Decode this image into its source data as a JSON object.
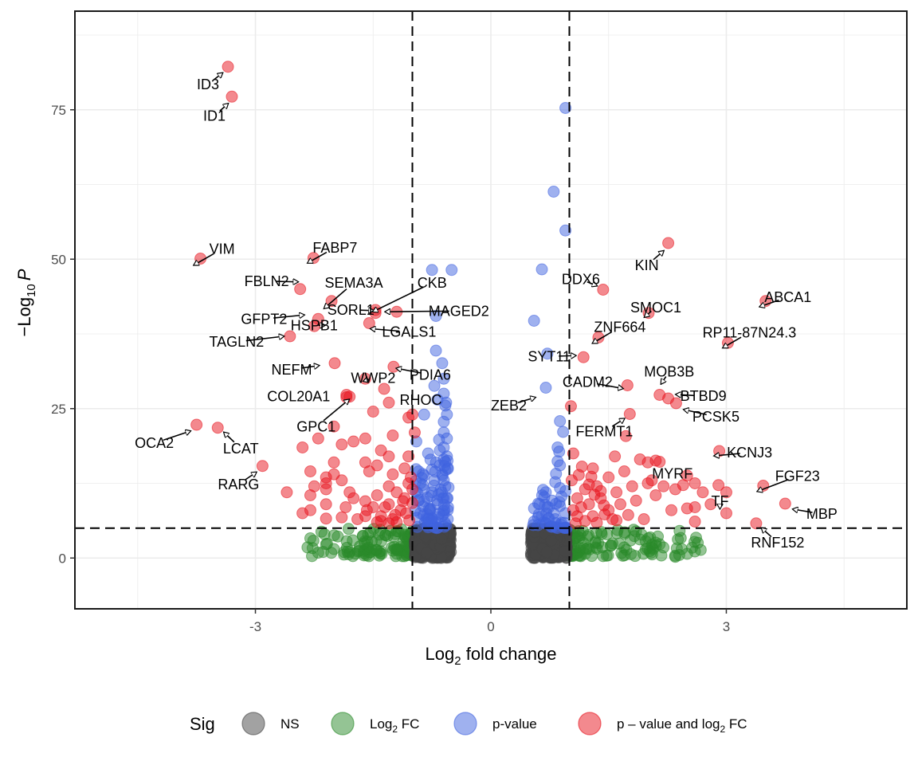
{
  "chart_data": {
    "type": "scatter",
    "subtype": "volcano",
    "title": "",
    "xlabel": {
      "base": "Log",
      "sub": "2",
      "rest": " fold change"
    },
    "ylabel": {
      "prefix": "−Log",
      "sub": "10",
      "var": "P"
    },
    "xlim": [
      -5.3,
      5.3
    ],
    "ylim": [
      -8.5,
      91.5
    ],
    "x_ticks": [
      -3,
      0,
      3
    ],
    "x_tick_labels": [
      "-3",
      "0",
      "3"
    ],
    "y_ticks": [
      0,
      25,
      50,
      75
    ],
    "y_tick_labels": [
      "0",
      "25",
      "50",
      "75"
    ],
    "grid": true,
    "fc_cutoff": 1,
    "p_cutoff_neglog10": 5,
    "legend": {
      "position": "bottom",
      "title": "Sig",
      "items": [
        {
          "key": "NS",
          "label": "NS",
          "color": "#454545"
        },
        {
          "key": "FC",
          "label": {
            "base": "Log",
            "sub": "2",
            "rest": " FC"
          },
          "color": "#2a8a2a"
        },
        {
          "key": "P",
          "label": "p-value",
          "color": "#3f63e0"
        },
        {
          "key": "PFC",
          "label": {
            "base": "p – value and log",
            "sub": "2",
            "rest": " FC"
          },
          "color": "#e8141e"
        }
      ]
    },
    "colors": {
      "NS": "#454545",
      "FC": "#2a8a2a",
      "P": "#3f63e0",
      "PFC": "#e8141e"
    },
    "labeled_genes": [
      {
        "gene": "ID3",
        "x": -3.35,
        "y": 82.2
      },
      {
        "gene": "ID1",
        "x": -3.3,
        "y": 77.2
      },
      {
        "gene": "VIM",
        "x": -3.7,
        "y": 50.1
      },
      {
        "gene": "FABP7",
        "x": -2.26,
        "y": 50.2
      },
      {
        "gene": "FBLN2",
        "x": -2.43,
        "y": 45.0
      },
      {
        "gene": "SEMA3A",
        "x": -2.03,
        "y": 43.0
      },
      {
        "gene": "GFPT2",
        "x": -2.25,
        "y": 38.8
      },
      {
        "gene": "SORL1",
        "x": -1.47,
        "y": 41.0
      },
      {
        "gene": "CKB",
        "x": -1.47,
        "y": 41.5
      },
      {
        "gene": "MAGED2",
        "x": -1.2,
        "y": 41.2
      },
      {
        "gene": "TAGLN2",
        "x": -2.56,
        "y": 37.1
      },
      {
        "gene": "HSPB1",
        "x": -2.2,
        "y": 40.0
      },
      {
        "gene": "LGALS1",
        "x": -1.55,
        "y": 39.3
      },
      {
        "gene": "NEFM",
        "x": -1.99,
        "y": 32.6
      },
      {
        "gene": "WWP2",
        "x": -1.6,
        "y": 30.0
      },
      {
        "gene": "PDIA6",
        "x": -1.24,
        "y": 32.0
      },
      {
        "gene": "COL20A1",
        "x": -1.84,
        "y": 27.3
      },
      {
        "gene": "RHOC",
        "x": -1.36,
        "y": 28.3
      },
      {
        "gene": "GPC1",
        "x": -1.84,
        "y": 26.9
      },
      {
        "gene": "OCA2",
        "x": -3.75,
        "y": 22.3
      },
      {
        "gene": "LCAT",
        "x": -3.48,
        "y": 21.8
      },
      {
        "gene": "RARG",
        "x": -2.91,
        "y": 15.4
      },
      {
        "gene": "KIN",
        "x": 2.26,
        "y": 52.7
      },
      {
        "gene": "DDX6",
        "x": 1.43,
        "y": 44.9
      },
      {
        "gene": "ABCA1",
        "x": 3.5,
        "y": 43.0
      },
      {
        "gene": "SMOC1",
        "x": 2.01,
        "y": 41.0
      },
      {
        "gene": "ZNF664",
        "x": 1.37,
        "y": 36.9
      },
      {
        "gene": "RP11-87N24.3",
        "x": 3.02,
        "y": 36.0
      },
      {
        "gene": "SYT11",
        "x": 1.18,
        "y": 33.6
      },
      {
        "gene": "MOB3B",
        "x": 2.15,
        "y": 27.3
      },
      {
        "gene": "CADM2",
        "x": 1.74,
        "y": 28.9
      },
      {
        "gene": "BTBD9",
        "x": 2.26,
        "y": 26.7
      },
      {
        "gene": "ZEB2",
        "x": 1.02,
        "y": 25.4
      },
      {
        "gene": "PCSK5",
        "x": 2.36,
        "y": 25.9
      },
      {
        "gene": "FERMT1",
        "x": 1.77,
        "y": 24.1
      },
      {
        "gene": "MYRF",
        "x": 2.15,
        "y": 16.1
      },
      {
        "gene": "KCNJ3",
        "x": 2.91,
        "y": 17.9
      },
      {
        "gene": "FGF23",
        "x": 3.47,
        "y": 12.1
      },
      {
        "gene": "TF",
        "x": 3.0,
        "y": 7.5
      },
      {
        "gene": "MBP",
        "x": 3.75,
        "y": 9.1
      },
      {
        "gene": "RNF152",
        "x": 3.38,
        "y": 5.8
      }
    ],
    "other_points": {
      "PFC": [
        [
          -1.0,
          24
        ],
        [
          -1.05,
          23.5
        ],
        [
          -0.97,
          21
        ],
        [
          -1.3,
          26
        ],
        [
          -1.5,
          24.5
        ],
        [
          -1.8,
          27
        ],
        [
          -2.0,
          22
        ],
        [
          -2.2,
          20
        ],
        [
          -2.4,
          18.5
        ],
        [
          -1.6,
          20
        ],
        [
          -1.4,
          18
        ],
        [
          -1.75,
          19.5
        ],
        [
          -1.9,
          19
        ],
        [
          -1.25,
          20.5
        ],
        [
          -1.3,
          17
        ],
        [
          -1.6,
          16
        ],
        [
          -1.45,
          15.5
        ],
        [
          -1.25,
          14
        ],
        [
          -1.1,
          15
        ],
        [
          -1.05,
          17
        ],
        [
          -2.0,
          16
        ],
        [
          -2.1,
          13.5
        ],
        [
          -2.3,
          14.5
        ],
        [
          -2.25,
          12
        ],
        [
          -2.1,
          12.5
        ],
        [
          -1.8,
          11
        ],
        [
          -1.9,
          13
        ],
        [
          -2.3,
          10.5
        ],
        [
          -2.1,
          11.5
        ],
        [
          -2.0,
          14
        ],
        [
          -1.55,
          14.5
        ],
        [
          -1.6,
          9.5
        ],
        [
          -1.45,
          10.5
        ],
        [
          -1.6,
          7
        ],
        [
          -1.3,
          12
        ],
        [
          -1.2,
          11
        ],
        [
          -1.3,
          9
        ],
        [
          -1.15,
          8
        ],
        [
          -1.25,
          6.5
        ],
        [
          -1.1,
          10
        ],
        [
          -1.05,
          12.5
        ],
        [
          -1.4,
          7
        ],
        [
          -1.5,
          8.5
        ],
        [
          -1.2,
          6
        ],
        [
          -1.08,
          7.5
        ],
        [
          -1.3,
          5.8
        ],
        [
          -1.4,
          6.2
        ],
        [
          -1.7,
          6.5
        ],
        [
          -1.9,
          6.8
        ],
        [
          -2.3,
          8
        ],
        [
          -2.1,
          9
        ],
        [
          -2.6,
          11
        ],
        [
          -2.4,
          7.5
        ],
        [
          -2.1,
          6.6
        ],
        [
          -1.85,
          8.5
        ],
        [
          -1.75,
          10
        ],
        [
          -1.0,
          9.2
        ],
        [
          -1.0,
          11.5
        ],
        [
          -1.02,
          13.5
        ],
        [
          -1.35,
          8.5
        ],
        [
          -1.12,
          9.5
        ],
        [
          -1.22,
          7.2
        ],
        [
          -1.45,
          6.0
        ],
        [
          -1.58,
          8.0
        ],
        [
          -1.04,
          6.3
        ],
        [
          1.05,
          17.5
        ],
        [
          1.03,
          13
        ],
        [
          1.1,
          10
        ],
        [
          1.15,
          8.5
        ],
        [
          1.2,
          11.5
        ],
        [
          1.25,
          9
        ],
        [
          1.3,
          15
        ],
        [
          1.35,
          12
        ],
        [
          1.3,
          7
        ],
        [
          1.4,
          10
        ],
        [
          1.5,
          13.5
        ],
        [
          1.6,
          11
        ],
        [
          1.65,
          9
        ],
        [
          1.7,
          14.5
        ],
        [
          1.8,
          12
        ],
        [
          1.9,
          16.5
        ],
        [
          2.0,
          16
        ],
        [
          2.1,
          16.3
        ],
        [
          2.05,
          13
        ],
        [
          2.2,
          12
        ],
        [
          2.35,
          11.5
        ],
        [
          2.5,
          13.8
        ],
        [
          2.6,
          12.5
        ],
        [
          2.7,
          11
        ],
        [
          2.6,
          8.5
        ],
        [
          2.8,
          9
        ],
        [
          3.0,
          11
        ],
        [
          2.9,
          12.2
        ],
        [
          2.45,
          12.2
        ],
        [
          2.3,
          8
        ],
        [
          2.1,
          10.5
        ],
        [
          1.75,
          7.2
        ],
        [
          1.55,
          6.5
        ],
        [
          1.5,
          8
        ],
        [
          1.45,
          7.3
        ],
        [
          1.2,
          6.2
        ],
        [
          1.1,
          7
        ],
        [
          1.05,
          8
        ],
        [
          1.08,
          5.8
        ],
        [
          1.35,
          5.9
        ],
        [
          1.6,
          6.3
        ],
        [
          1.95,
          6.5
        ],
        [
          2.5,
          8.3
        ],
        [
          2.6,
          6.1
        ],
        [
          1.4,
          11.2
        ],
        [
          1.28,
          13.6
        ],
        [
          1.72,
          20.4
        ],
        [
          1.58,
          17.0
        ],
        [
          2.0,
          12.5
        ],
        [
          1.85,
          9.6
        ],
        [
          1.25,
          12.3
        ],
        [
          1.16,
          15.3
        ],
        [
          1.12,
          13.9
        ],
        [
          1.32,
          10.6
        ],
        [
          1.44,
          8.8
        ]
      ],
      "P": [
        [
          -0.5,
          48.2
        ],
        [
          -0.75,
          48.2
        ],
        [
          -0.7,
          40.5
        ],
        [
          -0.7,
          34.7
        ],
        [
          -0.62,
          32.6
        ],
        [
          -0.72,
          28.8
        ],
        [
          -0.68,
          26.5
        ],
        [
          -0.85,
          24
        ],
        [
          -0.95,
          19.5
        ],
        [
          -0.6,
          21
        ],
        [
          -0.65,
          18
        ],
        [
          -0.7,
          16
        ],
        [
          -0.62,
          14
        ],
        [
          -0.72,
          13
        ],
        [
          -0.58,
          12
        ],
        [
          -0.9,
          12.5
        ],
        [
          -0.75,
          11
        ],
        [
          -0.6,
          10
        ],
        [
          -0.68,
          9
        ],
        [
          -0.85,
          9.5
        ],
        [
          -0.55,
          8
        ],
        [
          -0.78,
          8
        ],
        [
          -0.62,
          7
        ],
        [
          -0.9,
          7.5
        ],
        [
          -0.55,
          6.5
        ],
        [
          -0.7,
          6
        ],
        [
          -0.8,
          6.5
        ],
        [
          -0.57,
          5.5
        ],
        [
          -0.65,
          15.5
        ],
        [
          -0.6,
          22.8
        ],
        [
          -0.58,
          25.5
        ],
        [
          -0.66,
          19.8
        ],
        [
          -0.8,
          17.5
        ],
        [
          -0.92,
          14.5
        ],
        [
          -0.64,
          11.5
        ],
        [
          -0.56,
          17
        ],
        [
          -0.56,
          20
        ],
        [
          -0.56,
          24
        ],
        [
          -0.57,
          26
        ],
        [
          -0.6,
          30
        ],
        [
          -0.6,
          13
        ],
        [
          -0.6,
          16.5
        ],
        [
          -0.6,
          18.5
        ],
        [
          -0.6,
          27.5
        ],
        [
          -0.85,
          13.8
        ],
        [
          -0.75,
          14.8
        ],
        [
          0.95,
          75.3
        ],
        [
          0.8,
          61.3
        ],
        [
          0.95,
          54.8
        ],
        [
          0.65,
          48.3
        ],
        [
          0.55,
          39.7
        ],
        [
          0.72,
          34.2
        ],
        [
          0.7,
          28.5
        ],
        [
          0.88,
          22.9
        ],
        [
          0.92,
          21.1
        ],
        [
          0.87,
          17.8
        ],
        [
          0.85,
          16.2
        ],
        [
          0.88,
          15.5
        ],
        [
          0.82,
          12.7
        ],
        [
          0.88,
          11.7
        ],
        [
          0.95,
          11.2
        ],
        [
          0.7,
          11
        ],
        [
          0.68,
          10.2
        ],
        [
          0.9,
          10.3
        ],
        [
          0.78,
          9.6
        ],
        [
          0.62,
          9
        ],
        [
          0.88,
          8.7
        ],
        [
          0.72,
          8.5
        ],
        [
          0.55,
          8.3
        ],
        [
          0.8,
          7.5
        ],
        [
          0.65,
          7
        ],
        [
          0.95,
          7.5
        ],
        [
          0.82,
          6.5
        ],
        [
          0.55,
          6.1
        ],
        [
          0.7,
          5.8
        ],
        [
          0.9,
          5.9
        ],
        [
          0.6,
          5.5
        ],
        [
          0.85,
          18.5
        ],
        [
          0.83,
          14.1
        ],
        [
          0.6,
          6.8
        ]
      ],
      "FC_ranges": [
        [
          -2.35,
          -1.0,
          0.3,
          4.9
        ],
        [
          1.0,
          2.7,
          0.3,
          4.8
        ]
      ],
      "NS_ranges": [
        [
          -0.97,
          -0.51,
          0.0,
          5.0
        ],
        [
          0.51,
          0.97,
          0.0,
          5.0
        ]
      ],
      "FC_extra": [
        [
          -2.3,
          3.3
        ],
        [
          -2.1,
          2.3
        ],
        [
          -2.0,
          1.5
        ],
        [
          -1.8,
          1.0
        ],
        [
          -2.2,
          0.9
        ],
        [
          -1.95,
          3.6
        ],
        [
          2.6,
          1.1
        ],
        [
          2.4,
          0.5
        ],
        [
          2.35,
          0.2
        ],
        [
          2.5,
          0.7
        ],
        [
          2.15,
          2.3
        ],
        [
          1.9,
          3.1
        ]
      ]
    }
  }
}
